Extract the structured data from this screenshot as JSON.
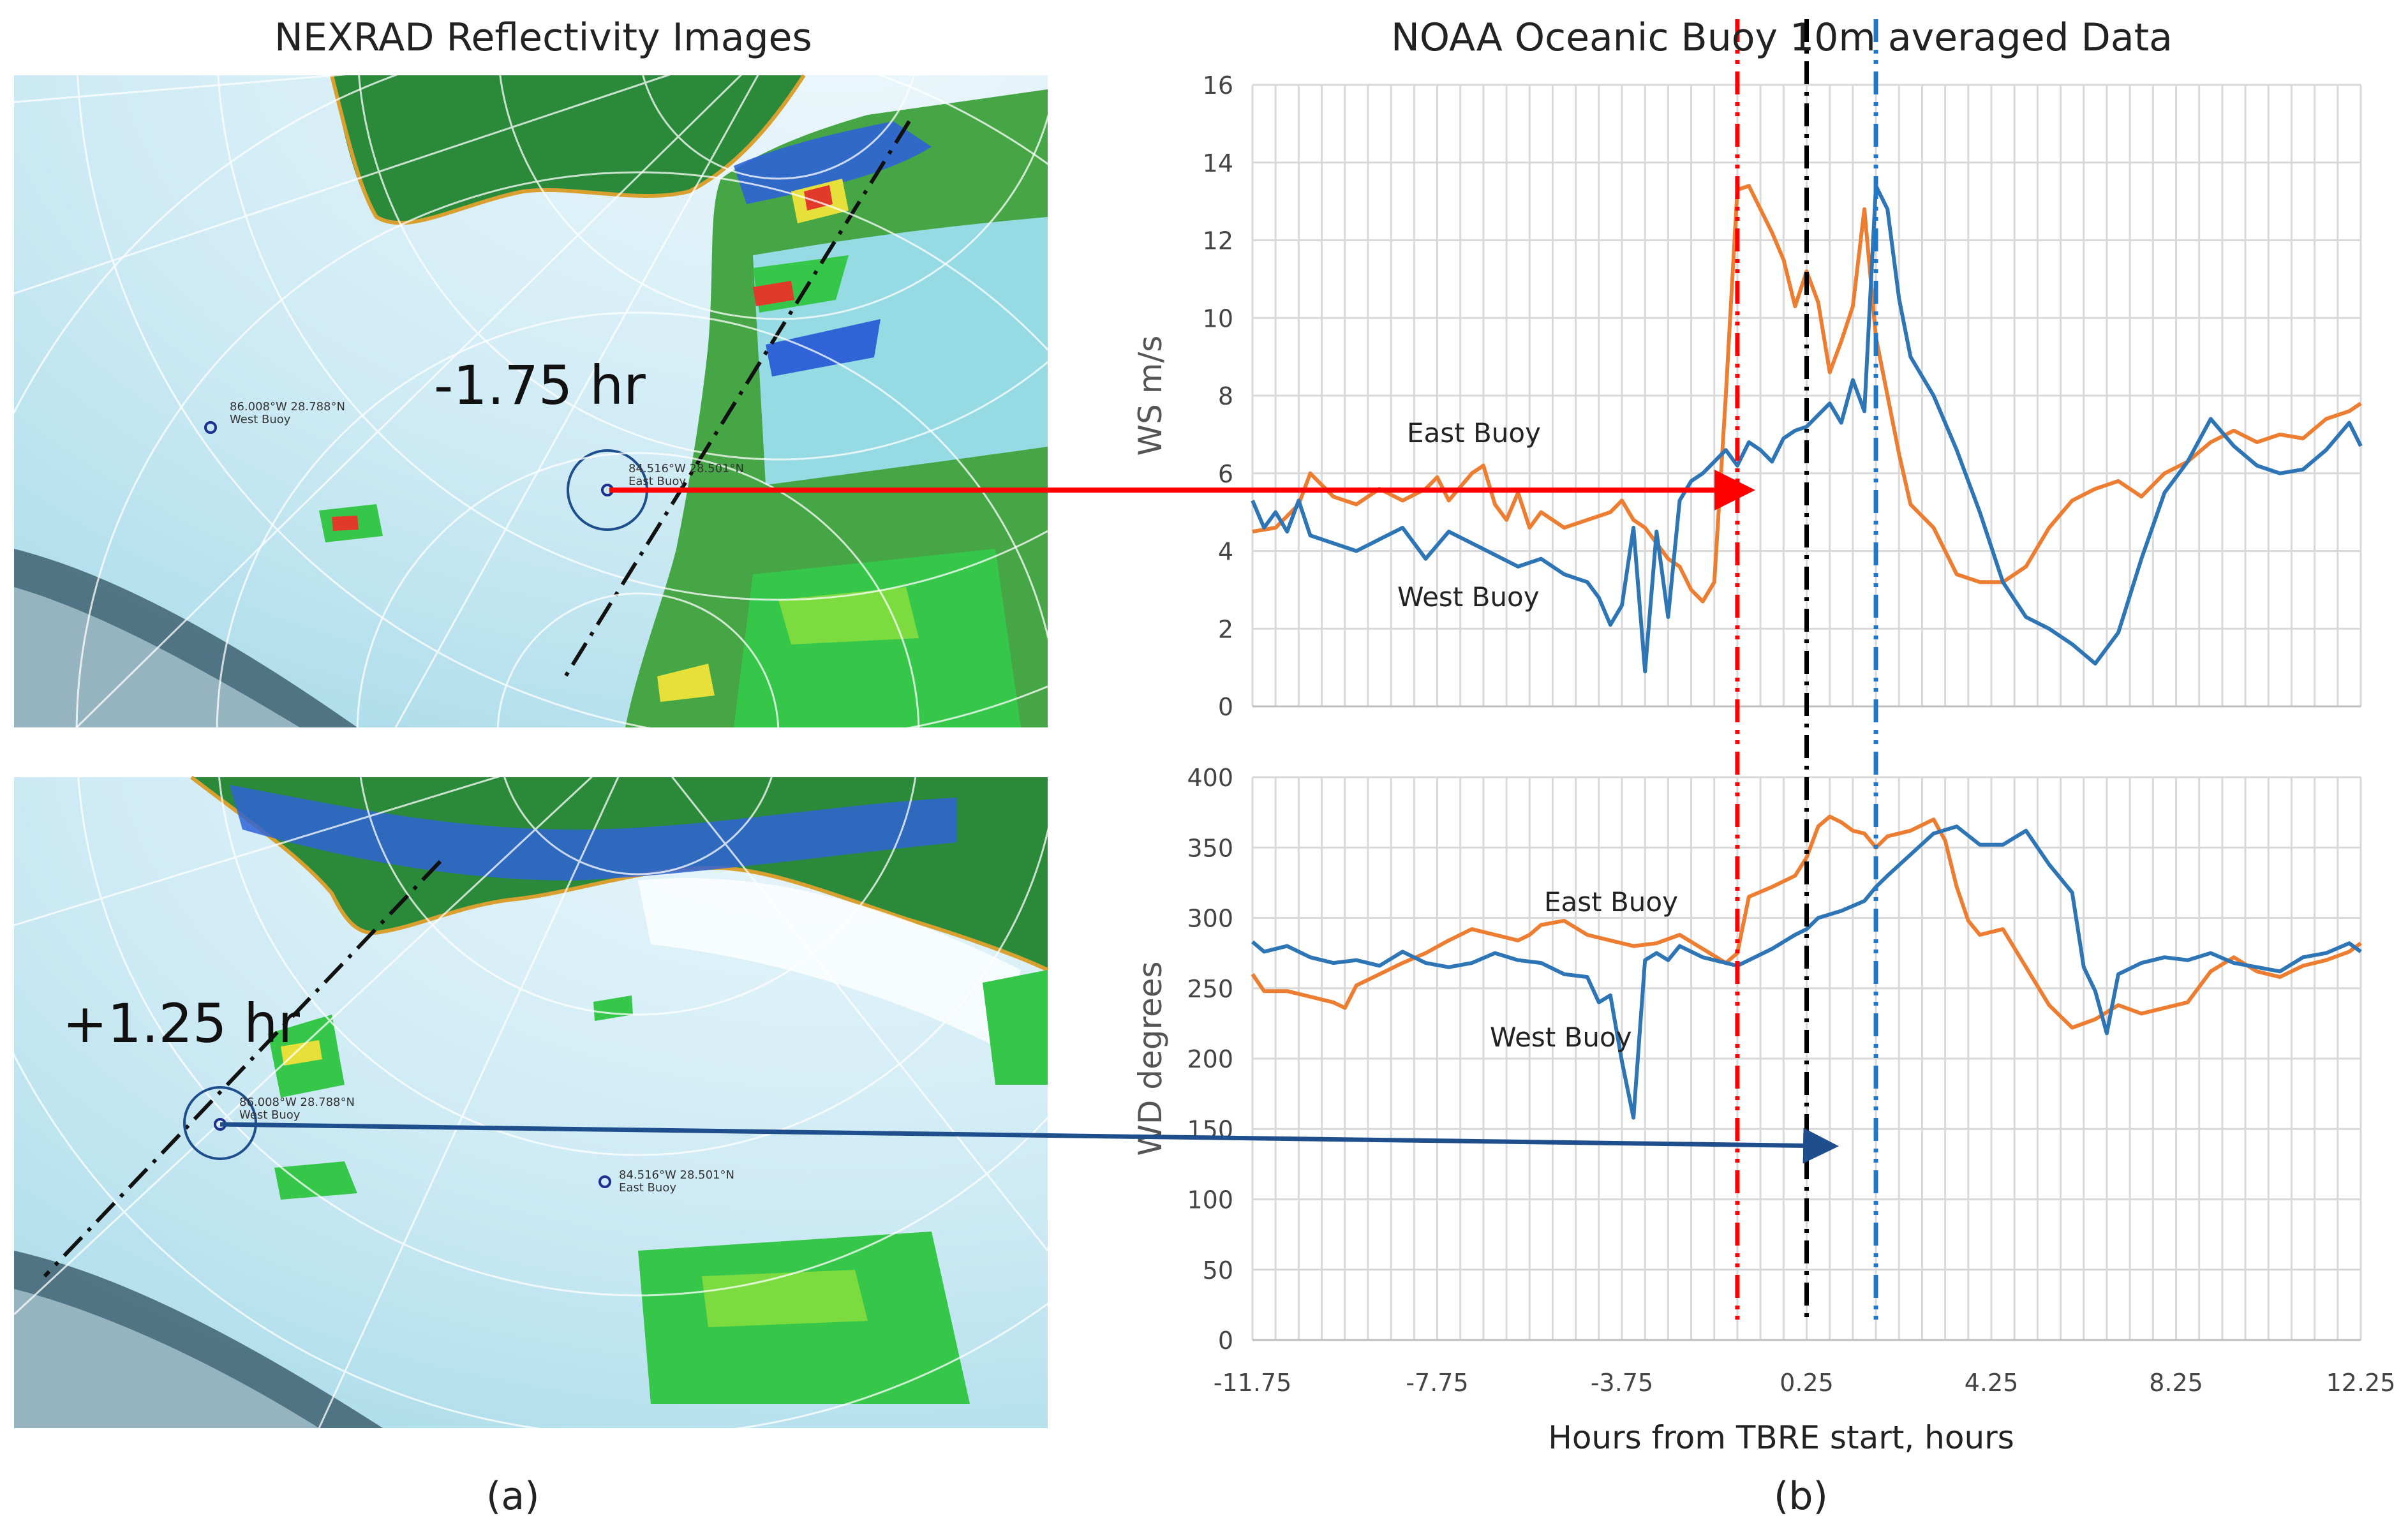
{
  "panels": {
    "a_title": "NEXRAD Reflectivity Images",
    "b_title": "NOAA Oceanic Buoy 10m averaged Data",
    "a_label": "(a)",
    "b_label": "(b)"
  },
  "radar": {
    "top_time": "-1.75 hr",
    "bottom_time": "+1.25 hr",
    "top_west_buoy_coord": "86.008°W 28.788°N",
    "top_west_buoy_name": "West Buoy",
    "top_east_buoy_coord": "84.516°W 28.501°N",
    "top_east_buoy_name": "East Buoy",
    "bottom_west_buoy_coord": "86.008°W 28.788°N",
    "bottom_west_buoy_name": "West Buoy",
    "bottom_east_buoy_coord": "84.516°W 28.501°N",
    "bottom_east_buoy_name": "East Buoy",
    "colors": {
      "water": "#d7eef7",
      "land": "#2a8a3a",
      "echo_light": "#9fe0f5",
      "echo_blue": "#2f63d6",
      "echo_green": "#35c64a",
      "echo_yellow": "#e8e03a",
      "echo_red": "#e13a2a",
      "coast": "#d9a030"
    }
  },
  "annotations": {
    "east_buoy_label_ws": "East Buoy",
    "west_buoy_label_ws": "West Buoy",
    "east_buoy_label_wd": "East Buoy",
    "west_buoy_label_wd": "West Buoy",
    "red_arrow_color": "#ff0000",
    "blue_arrow_color": "#1f4e8c"
  },
  "chart_data": [
    {
      "type": "line",
      "title": "NOAA Oceanic Buoy 10m averaged Data",
      "xlabel": "",
      "ylabel": "WS m/s",
      "xlim": [
        -11.75,
        12.25
      ],
      "ylim": [
        0,
        16
      ],
      "yticks": [
        "0",
        "2",
        "4",
        "6",
        "8",
        "10",
        "12",
        "14",
        "16"
      ],
      "grid": true,
      "vlines": [
        {
          "x": -1.25,
          "color": "#ff0000",
          "style": "dash-dot-dot"
        },
        {
          "x": 0.25,
          "color": "#000000",
          "style": "dash-dot"
        },
        {
          "x": 1.75,
          "color": "#1f78c8",
          "style": "dash-dot-dot"
        }
      ],
      "series": [
        {
          "name": "East Buoy",
          "color": "#ed7d31",
          "x": [
            -11.75,
            -11.25,
            -10.75,
            -10.5,
            -10.0,
            -9.5,
            -9.0,
            -8.5,
            -8.0,
            -7.75,
            -7.5,
            -7.0,
            -6.75,
            -6.5,
            -6.25,
            -6.0,
            -5.75,
            -5.5,
            -5.0,
            -4.5,
            -4.0,
            -3.75,
            -3.5,
            -3.25,
            -3.0,
            -2.75,
            -2.5,
            -2.25,
            -2.0,
            -1.75,
            -1.5,
            -1.25,
            -1.0,
            -0.75,
            -0.5,
            -0.25,
            0.0,
            0.25,
            0.5,
            0.75,
            1.0,
            1.25,
            1.5,
            1.75,
            2.0,
            2.25,
            2.5,
            3.0,
            3.5,
            4.0,
            4.5,
            5.0,
            5.5,
            6.0,
            6.5,
            7.0,
            7.5,
            8.0,
            8.5,
            9.0,
            9.5,
            10.0,
            10.5,
            11.0,
            11.5,
            12.0,
            12.25
          ],
          "values": [
            4.5,
            4.6,
            5.2,
            6.0,
            5.4,
            5.2,
            5.6,
            5.3,
            5.6,
            5.9,
            5.3,
            6.0,
            6.2,
            5.2,
            4.8,
            5.5,
            4.6,
            5.0,
            4.6,
            4.8,
            5.0,
            5.3,
            4.8,
            4.6,
            4.2,
            3.8,
            3.6,
            3.0,
            2.7,
            3.2,
            8.0,
            13.3,
            13.4,
            12.8,
            12.2,
            11.5,
            10.3,
            11.2,
            10.4,
            8.6,
            9.4,
            10.3,
            12.8,
            9.5,
            8.0,
            6.5,
            5.2,
            4.6,
            3.4,
            3.2,
            3.2,
            3.6,
            4.6,
            5.3,
            5.6,
            5.8,
            5.4,
            6.0,
            6.3,
            6.8,
            7.1,
            6.8,
            7.0,
            6.9,
            7.4,
            7.6,
            7.8
          ]
        },
        {
          "name": "West Buoy",
          "color": "#2e75b6",
          "x": [
            -11.75,
            -11.5,
            -11.25,
            -11.0,
            -10.75,
            -10.5,
            -10.0,
            -9.5,
            -9.0,
            -8.5,
            -8.0,
            -7.5,
            -7.0,
            -6.5,
            -6.0,
            -5.5,
            -5.0,
            -4.5,
            -4.25,
            -4.0,
            -3.75,
            -3.5,
            -3.25,
            -3.0,
            -2.75,
            -2.5,
            -2.25,
            -2.0,
            -1.75,
            -1.5,
            -1.25,
            -1.0,
            -0.75,
            -0.5,
            -0.25,
            0.0,
            0.25,
            0.5,
            0.75,
            1.0,
            1.25,
            1.5,
            1.75,
            2.0,
            2.25,
            2.5,
            3.0,
            3.5,
            4.0,
            4.5,
            5.0,
            5.5,
            6.0,
            6.5,
            7.0,
            7.5,
            8.0,
            8.5,
            9.0,
            9.5,
            10.0,
            10.5,
            11.0,
            11.5,
            12.0,
            12.25
          ],
          "values": [
            5.3,
            4.6,
            5.0,
            4.5,
            5.3,
            4.4,
            4.2,
            4.0,
            4.3,
            4.6,
            3.8,
            4.5,
            4.2,
            3.9,
            3.6,
            3.8,
            3.4,
            3.2,
            2.8,
            2.1,
            2.6,
            4.6,
            0.9,
            4.5,
            2.3,
            5.3,
            5.8,
            6.0,
            6.3,
            6.6,
            6.2,
            6.8,
            6.6,
            6.3,
            6.9,
            7.1,
            7.2,
            7.5,
            7.8,
            7.3,
            8.4,
            7.6,
            13.4,
            12.8,
            10.5,
            9.0,
            8.0,
            6.6,
            5.0,
            3.2,
            2.3,
            2.0,
            1.6,
            1.1,
            1.9,
            3.8,
            5.5,
            6.3,
            7.4,
            6.7,
            6.2,
            6.0,
            6.1,
            6.6,
            7.3,
            6.7
          ]
        }
      ]
    },
    {
      "type": "line",
      "title": "",
      "xlabel": "Hours from TBRE start, hours",
      "ylabel": "WD degrees",
      "xlim": [
        -11.75,
        12.25
      ],
      "ylim": [
        0,
        400
      ],
      "yticks": [
        "0",
        "50",
        "100",
        "150",
        "200",
        "250",
        "300",
        "350",
        "400"
      ],
      "xticks": [
        "-11.75",
        "-7.75",
        "-3.75",
        "0.25",
        "4.25",
        "8.25",
        "12.25"
      ],
      "grid": true,
      "vlines": [
        {
          "x": -1.25,
          "color": "#ff0000",
          "style": "dash-dot-dot"
        },
        {
          "x": 0.25,
          "color": "#000000",
          "style": "dash-dot"
        },
        {
          "x": 1.75,
          "color": "#1f78c8",
          "style": "dash-dot-dot"
        }
      ],
      "series": [
        {
          "name": "East Buoy",
          "color": "#ed7d31",
          "x": [
            -11.75,
            -11.5,
            -11.0,
            -10.5,
            -10.0,
            -9.75,
            -9.5,
            -9.0,
            -8.5,
            -8.0,
            -7.5,
            -7.0,
            -6.5,
            -6.0,
            -5.75,
            -5.5,
            -5.0,
            -4.5,
            -4.0,
            -3.5,
            -3.0,
            -2.5,
            -2.0,
            -1.5,
            -1.25,
            -1.0,
            -0.5,
            0.0,
            0.25,
            0.5,
            0.75,
            1.0,
            1.25,
            1.5,
            1.75,
            2.0,
            2.5,
            3.0,
            3.25,
            3.5,
            3.75,
            4.0,
            4.5,
            5.0,
            5.5,
            6.0,
            6.5,
            7.0,
            7.5,
            8.0,
            8.5,
            9.0,
            9.5,
            10.0,
            10.5,
            11.0,
            11.5,
            12.0,
            12.25
          ],
          "values": [
            260,
            248,
            248,
            244,
            240,
            236,
            252,
            260,
            268,
            275,
            284,
            292,
            288,
            284,
            288,
            295,
            298,
            288,
            284,
            280,
            282,
            288,
            278,
            268,
            275,
            315,
            322,
            330,
            343,
            365,
            372,
            368,
            362,
            360,
            350,
            358,
            362,
            370,
            355,
            322,
            298,
            288,
            292,
            265,
            238,
            222,
            228,
            238,
            232,
            236,
            240,
            262,
            272,
            262,
            258,
            266,
            270,
            276,
            282
          ]
        },
        {
          "name": "West Buoy",
          "color": "#2e75b6",
          "x": [
            -11.75,
            -11.5,
            -11.0,
            -10.5,
            -10.0,
            -9.5,
            -9.0,
            -8.5,
            -8.0,
            -7.5,
            -7.0,
            -6.5,
            -6.0,
            -5.5,
            -5.0,
            -4.5,
            -4.25,
            -4.0,
            -3.75,
            -3.5,
            -3.25,
            -3.0,
            -2.75,
            -2.5,
            -2.0,
            -1.5,
            -1.25,
            -1.0,
            -0.5,
            0.0,
            0.25,
            0.5,
            1.0,
            1.5,
            1.75,
            2.0,
            2.5,
            3.0,
            3.5,
            4.0,
            4.5,
            5.0,
            5.5,
            6.0,
            6.25,
            6.5,
            6.75,
            7.0,
            7.5,
            8.0,
            8.5,
            9.0,
            9.5,
            10.0,
            10.5,
            11.0,
            11.5,
            12.0,
            12.25
          ],
          "values": [
            283,
            276,
            280,
            272,
            268,
            270,
            266,
            276,
            268,
            265,
            268,
            275,
            270,
            268,
            260,
            258,
            240,
            245,
            198,
            158,
            270,
            275,
            270,
            280,
            272,
            268,
            266,
            270,
            278,
            288,
            292,
            300,
            305,
            312,
            322,
            330,
            345,
            360,
            365,
            352,
            352,
            362,
            338,
            318,
            265,
            248,
            218,
            260,
            268,
            272,
            270,
            275,
            268,
            265,
            262,
            272,
            275,
            282,
            276
          ]
        }
      ]
    }
  ]
}
